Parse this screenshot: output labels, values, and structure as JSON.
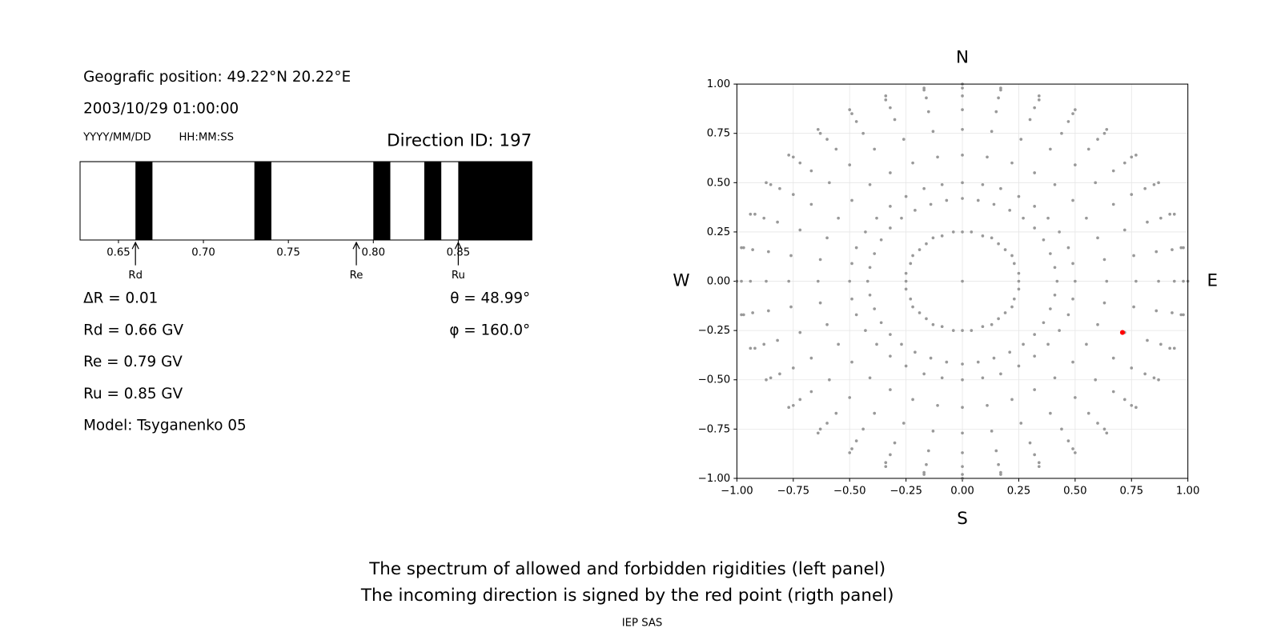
{
  "info": {
    "position": "Geografic position: 49.22°N 20.22°E",
    "datetime": "2003/10/29 01:00:00",
    "date_format": "YYYY/MM/DD",
    "time_format": "HH:MM:SS",
    "direction": "Direction ID: 197",
    "delta_r": "ΔR = 0.01",
    "rd": "Rd = 0.66 GV",
    "re": "Re = 0.79 GV",
    "ru": "Ru = 0.85 GV",
    "model": "Model: Tsyganenko 05",
    "theta": "θ = 48.99°",
    "phi": "φ = 160.0°"
  },
  "chart_data": [
    {
      "type": "spectrum",
      "xlim": [
        0.6274,
        0.8933
      ],
      "xticks": [
        {
          "value": 0.65,
          "label": "0.65"
        },
        {
          "value": 0.7,
          "label": "0.70"
        },
        {
          "value": 0.75,
          "label": "0.75"
        },
        {
          "value": 0.8,
          "label": "0.80"
        },
        {
          "value": 0.85,
          "label": "0.85"
        }
      ],
      "color": "#000000",
      "forbidden": [
        [
          0.66,
          0.67
        ],
        [
          0.73,
          0.74
        ],
        [
          0.8,
          0.81
        ],
        [
          0.83,
          0.84
        ],
        [
          0.85,
          0.8933
        ]
      ],
      "markers": [
        {
          "label": "Rd",
          "value": 0.66
        },
        {
          "label": "Re",
          "value": 0.79
        },
        {
          "label": "Ru",
          "value": 0.85
        }
      ]
    },
    {
      "type": "scatter",
      "xlim": [
        -1,
        1
      ],
      "ylim": [
        -1,
        1
      ],
      "grid": true,
      "xticks": [
        {
          "value": -1,
          "label": "−1.00"
        },
        {
          "value": -0.75,
          "label": "−0.75"
        },
        {
          "value": -0.5,
          "label": "−0.50"
        },
        {
          "value": -0.25,
          "label": "−0.25"
        },
        {
          "value": 0,
          "label": "0.00"
        },
        {
          "value": 0.25,
          "label": "0.25"
        },
        {
          "value": 0.5,
          "label": "0.50"
        },
        {
          "value": 0.75,
          "label": "0.75"
        },
        {
          "value": 1,
          "label": "1.00"
        }
      ],
      "yticks": [
        {
          "value": -1,
          "label": "−1.00"
        },
        {
          "value": -0.75,
          "label": "−0.75"
        },
        {
          "value": -0.5,
          "label": "−0.50"
        },
        {
          "value": -0.25,
          "label": "−0.25"
        },
        {
          "value": 0,
          "label": "0.00"
        },
        {
          "value": 0.25,
          "label": "0.25"
        },
        {
          "value": 0.5,
          "label": "0.50"
        },
        {
          "value": 0.75,
          "label": "0.75"
        },
        {
          "value": 1,
          "label": "1.00"
        }
      ],
      "directions": {
        "north": "N",
        "south": "S",
        "west": "W",
        "east": "E"
      },
      "series": [
        {
          "color": "#999999",
          "x": [
            0,
            0.25,
            0.25,
            0.23,
            0.22,
            0.19,
            0.16,
            0.13,
            0.09,
            0.04,
            0,
            -0.04,
            -0.09,
            -0.13,
            -0.16,
            -0.19,
            -0.22,
            -0.23,
            -0.25,
            -0.25,
            -0.25,
            -0.23,
            -0.22,
            -0.19,
            -0.16,
            -0.13,
            -0.09,
            -0.04,
            0,
            0.04,
            0.09,
            0.13,
            0.16,
            0.19,
            0.22,
            0.23,
            0.25,
            0.42,
            0.41,
            0.39,
            0.36,
            0.32,
            0.27,
            0.21,
            0.14,
            0.07,
            0,
            -0.07,
            -0.14,
            -0.21,
            -0.27,
            -0.32,
            -0.36,
            -0.39,
            -0.41,
            -0.42,
            -0.41,
            -0.39,
            -0.36,
            -0.32,
            -0.27,
            -0.21,
            -0.14,
            -0.07,
            0,
            0.07,
            0.14,
            0.21,
            0.27,
            0.32,
            0.36,
            0.39,
            0.41,
            0.5,
            0.49,
            0.47,
            0.43,
            0.38,
            0.32,
            0.25,
            0.17,
            0.09,
            0,
            -0.09,
            -0.17,
            -0.25,
            -0.32,
            -0.38,
            -0.43,
            -0.47,
            -0.49,
            -0.5,
            -0.49,
            -0.47,
            -0.43,
            -0.38,
            -0.32,
            -0.25,
            -0.17,
            -0.09,
            0,
            0.09,
            0.17,
            0.25,
            0.32,
            0.38,
            0.43,
            0.47,
            0.49,
            0.64,
            0.63,
            0.6,
            0.55,
            0.49,
            0.41,
            0.32,
            0.22,
            0.11,
            0,
            -0.11,
            -0.22,
            -0.32,
            -0.41,
            -0.49,
            -0.55,
            -0.6,
            -0.63,
            -0.64,
            -0.63,
            -0.6,
            -0.55,
            -0.49,
            -0.41,
            -0.32,
            -0.22,
            -0.11,
            0,
            0.11,
            0.22,
            0.32,
            0.41,
            0.49,
            0.55,
            0.6,
            0.63,
            0.77,
            0.76,
            0.72,
            0.67,
            0.59,
            0.5,
            0.39,
            0.26,
            0.13,
            0,
            -0.13,
            -0.26,
            -0.39,
            -0.5,
            -0.59,
            -0.67,
            -0.72,
            -0.76,
            -0.77,
            -0.76,
            -0.72,
            -0.67,
            -0.59,
            -0.5,
            -0.39,
            -0.26,
            -0.13,
            0,
            0.13,
            0.26,
            0.39,
            0.5,
            0.59,
            0.67,
            0.72,
            0.76,
            0.87,
            0.86,
            0.82,
            0.75,
            0.67,
            0.56,
            0.44,
            0.3,
            0.15,
            0,
            -0.15,
            -0.3,
            -0.44,
            -0.56,
            -0.67,
            -0.75,
            -0.82,
            -0.86,
            -0.87,
            -0.86,
            -0.82,
            -0.75,
            -0.67,
            -0.56,
            -0.44,
            -0.3,
            -0.15,
            0,
            0.15,
            0.3,
            0.44,
            0.56,
            0.67,
            0.75,
            0.82,
            0.86,
            0.94,
            0.93,
            0.88,
            0.81,
            0.72,
            0.6,
            0.47,
            0.32,
            0.16,
            0,
            -0.16,
            -0.32,
            -0.47,
            -0.6,
            -0.72,
            -0.81,
            -0.88,
            -0.93,
            -0.94,
            -0.93,
            -0.88,
            -0.81,
            -0.72,
            -0.6,
            -0.47,
            -0.32,
            -0.16,
            0,
            0.16,
            0.32,
            0.47,
            0.6,
            0.72,
            0.81,
            0.88,
            0.93,
            0.98,
            0.97,
            0.92,
            0.85,
            0.75,
            0.63,
            0.49,
            0.34,
            0.17,
            0,
            -0.17,
            -0.34,
            -0.49,
            -0.63,
            -0.75,
            -0.85,
            -0.92,
            -0.97,
            -0.98,
            -0.97,
            -0.92,
            -0.85,
            -0.75,
            -0.63,
            -0.49,
            -0.34,
            -0.17,
            0,
            0.17,
            0.34,
            0.49,
            0.63,
            0.75,
            0.85,
            0.92,
            0.97,
            1,
            0.98,
            0.94,
            0.87,
            0.77,
            0.64,
            0.5,
            0.34,
            0.17,
            0,
            -0.17,
            -0.34,
            -0.5,
            -0.64,
            -0.77,
            -0.87,
            -0.94,
            -0.98,
            -1,
            -0.98,
            -0.94,
            -0.87,
            -0.77,
            -0.64,
            -0.5,
            -0.34,
            -0.17,
            0,
            0.17,
            0.34,
            0.5,
            0.64,
            0.77,
            0.87,
            0.94,
            0.98
          ],
          "y": [
            0,
            0,
            0.04,
            0.09,
            0.13,
            0.16,
            0.19,
            0.22,
            0.23,
            0.25,
            0.25,
            0.25,
            0.23,
            0.22,
            0.19,
            0.16,
            0.13,
            0.09,
            0.04,
            0,
            -0.04,
            -0.09,
            -0.13,
            -0.16,
            -0.19,
            -0.22,
            -0.23,
            -0.25,
            -0.25,
            -0.25,
            -0.23,
            -0.22,
            -0.19,
            -0.16,
            -0.13,
            -0.09,
            -0.04,
            0,
            0.07,
            0.14,
            0.21,
            0.27,
            0.32,
            0.36,
            0.39,
            0.41,
            0.42,
            0.41,
            0.39,
            0.36,
            0.32,
            0.27,
            0.21,
            0.14,
            0.07,
            0,
            -0.07,
            -0.14,
            -0.21,
            -0.27,
            -0.32,
            -0.36,
            -0.39,
            -0.41,
            -0.42,
            -0.41,
            -0.39,
            -0.36,
            -0.32,
            -0.27,
            -0.21,
            -0.14,
            -0.07,
            0,
            0.09,
            0.17,
            0.25,
            0.32,
            0.38,
            0.43,
            0.47,
            0.49,
            0.5,
            0.49,
            0.47,
            0.43,
            0.38,
            0.32,
            0.25,
            0.17,
            0.09,
            0,
            -0.09,
            -0.17,
            -0.25,
            -0.32,
            -0.38,
            -0.43,
            -0.47,
            -0.49,
            -0.5,
            -0.49,
            -0.47,
            -0.43,
            -0.38,
            -0.32,
            -0.25,
            -0.17,
            -0.09,
            0,
            0.11,
            0.22,
            0.32,
            0.41,
            0.49,
            0.55,
            0.6,
            0.63,
            0.64,
            0.63,
            0.6,
            0.55,
            0.49,
            0.41,
            0.32,
            0.22,
            0.11,
            0,
            -0.11,
            -0.22,
            -0.32,
            -0.41,
            -0.49,
            -0.55,
            -0.6,
            -0.63,
            -0.64,
            -0.63,
            -0.6,
            -0.55,
            -0.49,
            -0.41,
            -0.32,
            -0.22,
            -0.11,
            0,
            0.13,
            0.26,
            0.39,
            0.5,
            0.59,
            0.67,
            0.72,
            0.76,
            0.77,
            0.76,
            0.72,
            0.67,
            0.59,
            0.5,
            0.39,
            0.26,
            0.13,
            0,
            -0.13,
            -0.26,
            -0.39,
            -0.5,
            -0.59,
            -0.67,
            -0.72,
            -0.76,
            -0.77,
            -0.76,
            -0.72,
            -0.67,
            -0.59,
            -0.5,
            -0.39,
            -0.26,
            -0.13,
            0,
            0.15,
            0.3,
            0.44,
            0.56,
            0.67,
            0.75,
            0.82,
            0.86,
            0.87,
            0.86,
            0.82,
            0.75,
            0.67,
            0.56,
            0.44,
            0.3,
            0.15,
            0,
            -0.15,
            -0.3,
            -0.44,
            -0.56,
            -0.67,
            -0.75,
            -0.82,
            -0.86,
            -0.87,
            -0.86,
            -0.82,
            -0.75,
            -0.67,
            -0.56,
            -0.44,
            -0.3,
            -0.15,
            0,
            0.16,
            0.32,
            0.47,
            0.6,
            0.72,
            0.81,
            0.88,
            0.93,
            0.94,
            0.93,
            0.88,
            0.81,
            0.72,
            0.6,
            0.47,
            0.32,
            0.16,
            0,
            -0.16,
            -0.32,
            -0.47,
            -0.6,
            -0.72,
            -0.81,
            -0.88,
            -0.93,
            -0.94,
            -0.93,
            -0.88,
            -0.81,
            -0.72,
            -0.6,
            -0.47,
            -0.32,
            -0.16,
            0,
            0.17,
            0.34,
            0.49,
            0.63,
            0.75,
            0.85,
            0.92,
            0.97,
            0.98,
            0.97,
            0.92,
            0.85,
            0.75,
            0.63,
            0.49,
            0.34,
            0.17,
            0,
            -0.17,
            -0.34,
            -0.49,
            -0.63,
            -0.75,
            -0.85,
            -0.92,
            -0.97,
            -0.98,
            -0.97,
            -0.92,
            -0.85,
            -0.75,
            -0.63,
            -0.49,
            -0.34,
            -0.17,
            0,
            0.17,
            0.34,
            0.5,
            0.64,
            0.77,
            0.87,
            0.94,
            0.98,
            1,
            0.98,
            0.94,
            0.87,
            0.77,
            0.64,
            0.5,
            0.34,
            0.17,
            0,
            -0.17,
            -0.34,
            -0.5,
            -0.64,
            -0.77,
            -0.87,
            -0.94,
            -0.98,
            -1,
            -0.98,
            -0.94,
            -0.87,
            -0.77,
            -0.64,
            -0.5,
            -0.34,
            -0.17
          ]
        },
        {
          "color": "#ff0000",
          "x": [
            0.71
          ],
          "y": [
            -0.26
          ]
        }
      ]
    }
  ],
  "caption": [
    "The spectrum of allowed and forbidden rigidities (left panel)",
    "The incoming direction is signed by the red point (rigth panel)"
  ],
  "credit": "IEP SAS"
}
